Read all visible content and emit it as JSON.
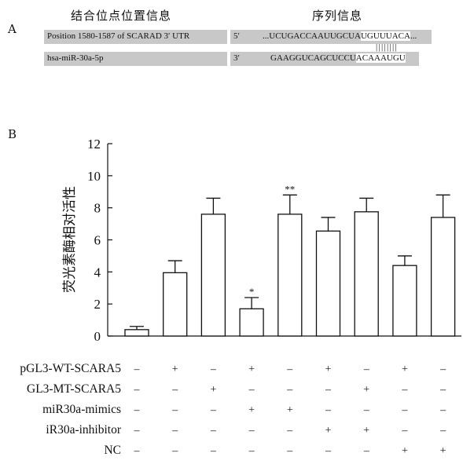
{
  "panel_a": {
    "letter": "A",
    "header_left": "结合位点位置信息",
    "header_right": "序列信息",
    "row1": {
      "label": "Position 1580-1587 of SCARAD 3′ UTR",
      "strand": "5′",
      "seq_prefix": "...UCUGACCAAUUGCUA",
      "seq_highlight": "UGUUUACA",
      "seq_suffix": "..."
    },
    "pairing": "||||||||",
    "row2": {
      "label": "hsa-miR-30a-5p",
      "strand": "3′",
      "seq_prefix": "GAAGGUCAGCUCCU",
      "seq_highlight": "ACAAAUGU",
      "seq_suffix": ""
    }
  },
  "panel_b": {
    "letter": "B"
  },
  "chart_data": {
    "type": "bar",
    "ylabel": "荧光素酶相对活性",
    "ylim": [
      0,
      12
    ],
    "yticks": [
      0,
      2,
      4,
      6,
      8,
      10,
      12
    ],
    "values": [
      0.4,
      3.95,
      7.6,
      1.7,
      7.6,
      6.55,
      7.75,
      4.4,
      7.4
    ],
    "errors": [
      0.2,
      0.75,
      1.0,
      0.7,
      1.2,
      0.85,
      0.85,
      0.6,
      1.4
    ],
    "annotations": [
      "",
      "",
      "",
      "*",
      "**",
      "",
      "",
      "",
      ""
    ],
    "conditions": [
      {
        "name": "pGL3-WT-SCARA5",
        "marks": [
          "–",
          "+",
          "–",
          "+",
          "–",
          "+",
          "–",
          "+",
          "–"
        ]
      },
      {
        "name": "GL3-MT-SCARA5",
        "marks": [
          "–",
          "–",
          "+",
          "–",
          "–",
          "–",
          "+",
          "–",
          "–"
        ]
      },
      {
        "name": "miR30a-mimics",
        "marks": [
          "–",
          "–",
          "–",
          "+",
          "+",
          "–",
          "–",
          "–",
          "–"
        ]
      },
      {
        "name": "iR30a-inhibitor",
        "marks": [
          "–",
          "–",
          "–",
          "–",
          "–",
          "+",
          "+",
          "–",
          "–"
        ]
      },
      {
        "name": "NC",
        "marks": [
          "–",
          "–",
          "–",
          "–",
          "–",
          "–",
          "–",
          "+",
          "+"
        ]
      }
    ]
  }
}
